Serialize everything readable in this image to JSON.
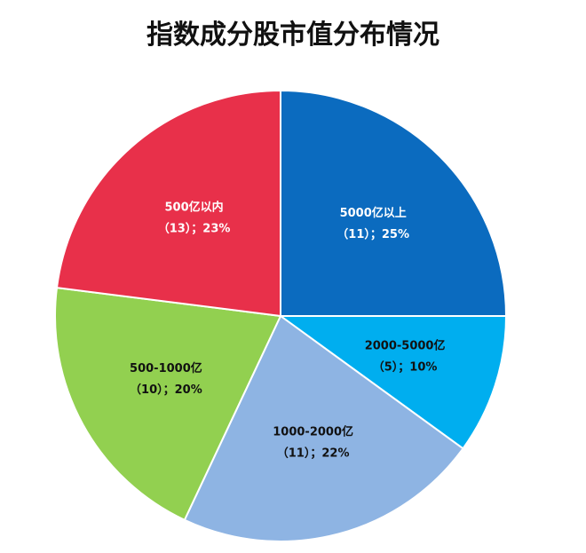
{
  "chart_data": {
    "type": "pie",
    "title": "指数成分股市值分布情况",
    "slices": [
      {
        "label": "5000亿以上",
        "count": 11,
        "percent": 25,
        "detail": "（11）；25%",
        "color": "#0b6bbf",
        "text_color": "#ffffff"
      },
      {
        "label": "2000-5000亿",
        "count": 5,
        "percent": 10,
        "detail": "（5）；10%",
        "color": "#00aeef",
        "text_color": "#111111"
      },
      {
        "label": "1000-2000亿",
        "count": 11,
        "percent": 22,
        "detail": "（11）；22%",
        "color": "#8eb4e3",
        "text_color": "#111111"
      },
      {
        "label": "500-1000亿",
        "count": 10,
        "percent": 20,
        "detail": "（10）；20%",
        "color": "#92d050",
        "text_color": "#111111"
      },
      {
        "label": "500亿以内",
        "count": 13,
        "percent": 23,
        "detail": "（13）；23%",
        "color": "#e8304a",
        "text_color": "#ffffff"
      }
    ],
    "start_angle_deg": 0,
    "direction": "clockwise",
    "legend": "none"
  }
}
